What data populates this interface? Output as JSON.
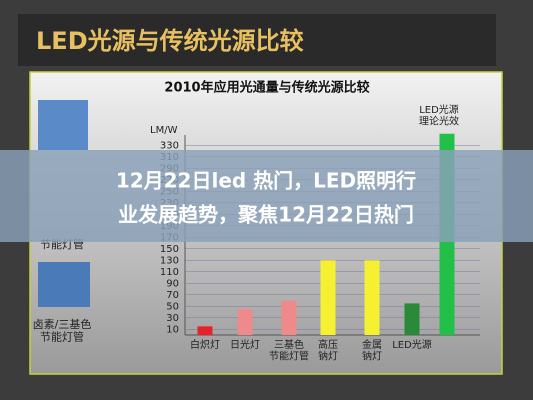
{
  "slide_title": "LED光源与传统光源比较",
  "side_labels": [
    "节能灯管",
    "卤素/三基色\n节能灯管"
  ],
  "overlay_text": [
    "12月22日led 热门，LED照明行",
    "业发展趋势，聚焦12月22日热门"
  ],
  "chart_data": {
    "type": "bar",
    "title": "2010年应用光通量与传统光源比较",
    "y_label": "LM/W",
    "categories": [
      "白炽灯",
      "日光灯",
      "三基色\n节能灯管",
      "高压\n钠灯",
      "金属\n钠灯",
      "LED光源",
      "LED光源\n理论光效"
    ],
    "values": [
      15,
      45,
      60,
      130,
      130,
      55,
      350
    ],
    "colors": [
      "#e8202a",
      "#f08a8a",
      "#f08a8a",
      "#f5f032",
      "#f5f032",
      "#2a8a3a",
      "#22c048"
    ],
    "ylim": [
      0,
      360
    ],
    "yticks": [
      10,
      30,
      50,
      70,
      90,
      110,
      130,
      150,
      170,
      190,
      210,
      230,
      250,
      270,
      290,
      310,
      330
    ],
    "grid": true
  }
}
